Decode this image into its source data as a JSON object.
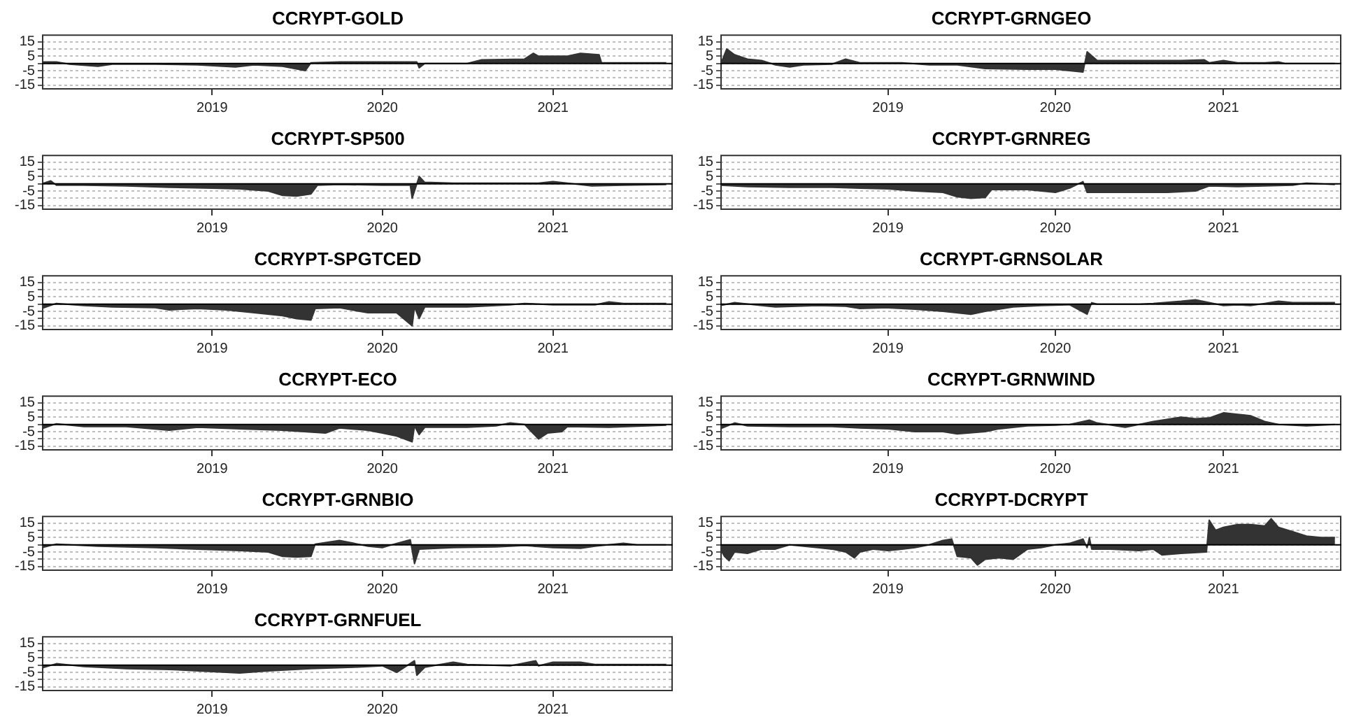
{
  "chart_data": [
    {
      "type": "area",
      "title": "CCRYPT-GOLD",
      "color": "#333333",
      "xlim": [
        "2018-01",
        "2021-09-15"
      ],
      "ylim": [
        -18,
        20
      ],
      "xticks": [
        {
          "value": "2019-01-01",
          "label": "2019"
        },
        {
          "value": "2020-01-01",
          "label": "2020"
        },
        {
          "value": "2021-01-01",
          "label": "2021"
        }
      ],
      "yticks": [
        15,
        {
          "value": 10,
          "label": null
        },
        5,
        {
          "value": 0,
          "label": null
        },
        -5,
        {
          "value": -10,
          "label": null
        },
        -15
      ],
      "grid": "y",
      "ref_lines": [
        {
          "axis": "y",
          "value": 0
        }
      ],
      "x": [
        "2018-01",
        "2018-02",
        "2018-03",
        "2018-05",
        "2018-06",
        "2018-09",
        "2018-12",
        "2019-02-20",
        "2019-04",
        "2019-06",
        "2019-07-20",
        "2019-08",
        "2019-10",
        "2020-01",
        "2020-03-15",
        "2020-03-20",
        "2020-04",
        "2020-07",
        "2020-08",
        "2020-11",
        "2020-11-20",
        "2020-12",
        "2021-02",
        "2021-03",
        "2021-04-10",
        "2021-04-15",
        "2021-06",
        "2021-09"
      ],
      "values": [
        1,
        1,
        -0.5,
        -2,
        -0.5,
        -0.5,
        -1,
        -2.5,
        -1,
        -2,
        -5,
        0.5,
        1,
        1,
        1,
        -3,
        0,
        0,
        2.5,
        3,
        7,
        5,
        5,
        7,
        6,
        0.5,
        0.5,
        0.5
      ]
    },
    {
      "type": "area",
      "title": "CCRYPT-GRNGEO",
      "color": "#333333",
      "xlim": [
        "2018-01",
        "2021-09-15"
      ],
      "ylim": [
        -18,
        20
      ],
      "xticks": [
        {
          "value": "2019-01-01",
          "label": "2019"
        },
        {
          "value": "2020-01-01",
          "label": "2020"
        },
        {
          "value": "2021-01-01",
          "label": "2021"
        }
      ],
      "yticks": [
        15,
        {
          "value": 10,
          "label": null
        },
        5,
        {
          "value": 0,
          "label": null
        },
        -5,
        {
          "value": -10,
          "label": null
        },
        -15
      ],
      "grid": "y",
      "ref_lines": [
        {
          "axis": "y",
          "value": 0
        }
      ],
      "x": [
        "2018-01",
        "2018-01-15",
        "2018-02",
        "2018-03",
        "2018-04",
        "2018-05",
        "2018-06",
        "2018-07",
        "2018-09",
        "2018-10",
        "2018-11",
        "2019-02",
        "2019-04",
        "2019-06",
        "2019-08",
        "2019-11",
        "2020-01",
        "2020-03-01",
        "2020-03-10",
        "2020-04",
        "2020-07",
        "2020-10",
        "2020-11-20",
        "2020-12",
        "2021-01",
        "2021-02",
        "2021-04",
        "2021-05",
        "2021-05-15",
        "2021-09"
      ],
      "values": [
        -1,
        10,
        6,
        3,
        2,
        -1,
        -2.5,
        -1,
        -0.5,
        3,
        0.5,
        0.5,
        -1,
        -1,
        -3.5,
        -4,
        -4,
        -6,
        8,
        2,
        2,
        2,
        2.5,
        0.5,
        2,
        0.5,
        0.5,
        1,
        0,
        0
      ]
    },
    {
      "type": "area",
      "title": "CCRYPT-SP500",
      "color": "#333333",
      "xlim": [
        "2018-01",
        "2021-09-15"
      ],
      "ylim": [
        -18,
        20
      ],
      "xticks": [
        {
          "value": "2019-01-01",
          "label": "2019"
        },
        {
          "value": "2020-01-01",
          "label": "2020"
        },
        {
          "value": "2021-01-01",
          "label": "2021"
        }
      ],
      "yticks": [
        15,
        {
          "value": 10,
          "label": null
        },
        5,
        {
          "value": 0,
          "label": null
        },
        -5,
        {
          "value": -10,
          "label": null
        },
        -15
      ],
      "grid": "y",
      "ref_lines": [
        {
          "axis": "y",
          "value": 0
        }
      ],
      "x": [
        "2018-01",
        "2018-01-20",
        "2018-02",
        "2018-04",
        "2018-07",
        "2018-10",
        "2019-01",
        "2019-03",
        "2019-05",
        "2019-06",
        "2019-07",
        "2019-08",
        "2019-08-15",
        "2019-10",
        "2020-01",
        "2020-03-01",
        "2020-03-05",
        "2020-03-20",
        "2020-04",
        "2020-06",
        "2020-12",
        "2021-01",
        "2021-02",
        "2021-03-25",
        "2021-06",
        "2021-09"
      ],
      "values": [
        0,
        2,
        -1,
        -1,
        -1.5,
        -2.5,
        -3,
        -3.5,
        -5,
        -8,
        -8.5,
        -7,
        -1,
        -0.5,
        -1,
        -1,
        -10,
        5,
        1,
        0.5,
        0.5,
        1.5,
        0.5,
        -1.5,
        -1,
        -0.5
      ]
    },
    {
      "type": "area",
      "title": "CCRYPT-GRNREG",
      "color": "#333333",
      "xlim": [
        "2018-01",
        "2021-09-15"
      ],
      "ylim": [
        -18,
        20
      ],
      "xticks": [
        {
          "value": "2019-01-01",
          "label": "2019"
        },
        {
          "value": "2020-01-01",
          "label": "2020"
        },
        {
          "value": "2021-01-01",
          "label": "2021"
        }
      ],
      "yticks": [
        15,
        {
          "value": 10,
          "label": null
        },
        5,
        {
          "value": 0,
          "label": null
        },
        -5,
        {
          "value": -10,
          "label": null
        },
        -15
      ],
      "grid": "y",
      "ref_lines": [
        {
          "axis": "y",
          "value": 0
        }
      ],
      "x": [
        "2018-01",
        "2018-03",
        "2018-06",
        "2018-09",
        "2018-11",
        "2019-01",
        "2019-03",
        "2019-05",
        "2019-06",
        "2019-07",
        "2019-08",
        "2019-08-15",
        "2019-11",
        "2020-01",
        "2020-02",
        "2020-03-01",
        "2020-03-10",
        "2020-06",
        "2020-09",
        "2020-11",
        "2020-12",
        "2021-02",
        "2021-04",
        "2021-06",
        "2021-07",
        "2021-09"
      ],
      "values": [
        -1,
        -2,
        -2.5,
        -2.5,
        -3,
        -3.5,
        -5,
        -6,
        -9,
        -10,
        -9.5,
        -4,
        -4,
        -6,
        -3,
        1.5,
        -6,
        -6,
        -6,
        -5,
        -1.5,
        -2,
        -1.5,
        -1,
        0.5,
        -0.5
      ]
    },
    {
      "type": "area",
      "title": "CCRYPT-SPGTCED",
      "color": "#333333",
      "xlim": [
        "2018-01",
        "2021-09-15"
      ],
      "ylim": [
        -18,
        20
      ],
      "xticks": [
        {
          "value": "2019-01-01",
          "label": "2019"
        },
        {
          "value": "2020-01-01",
          "label": "2020"
        },
        {
          "value": "2021-01-01",
          "label": "2021"
        }
      ],
      "yticks": [
        15,
        {
          "value": 10,
          "label": null
        },
        5,
        {
          "value": 0,
          "label": null
        },
        -5,
        {
          "value": -10,
          "label": null
        },
        -15
      ],
      "grid": "y",
      "ref_lines": [
        {
          "axis": "y",
          "value": 0
        }
      ],
      "x": [
        "2018-01",
        "2018-02",
        "2018-04",
        "2018-06",
        "2018-09",
        "2018-10",
        "2018-12",
        "2019-02",
        "2019-04",
        "2019-06",
        "2019-07",
        "2019-08",
        "2019-08-10",
        "2019-10",
        "2019-12",
        "2020-02",
        "2020-03-05",
        "2020-03-10",
        "2020-03-20",
        "2020-04",
        "2020-07",
        "2020-10",
        "2020-11",
        "2021-01",
        "2021-04",
        "2021-05",
        "2021-06",
        "2021-09"
      ],
      "values": [
        -3,
        0.5,
        -1,
        -2,
        -2.5,
        -4,
        -3,
        -4,
        -6,
        -8,
        -10,
        -11,
        -3,
        -2.5,
        -6,
        -6,
        -15,
        -2,
        -10,
        -2,
        -2,
        -0.5,
        0.5,
        -0.5,
        -0.5,
        1.5,
        0.5,
        0.5
      ]
    },
    {
      "type": "area",
      "title": "CCRYPT-GRNSOLAR",
      "color": "#333333",
      "xlim": [
        "2018-01",
        "2021-09-15"
      ],
      "ylim": [
        -18,
        20
      ],
      "xticks": [
        {
          "value": "2019-01-01",
          "label": "2019"
        },
        {
          "value": "2020-01-01",
          "label": "2020"
        },
        {
          "value": "2021-01-01",
          "label": "2021"
        }
      ],
      "yticks": [
        15,
        {
          "value": 10,
          "label": null
        },
        5,
        {
          "value": 0,
          "label": null
        },
        -5,
        {
          "value": -10,
          "label": null
        },
        -15
      ],
      "grid": "y",
      "ref_lines": [
        {
          "axis": "y",
          "value": 0
        }
      ],
      "x": [
        "2018-01",
        "2018-02",
        "2018-04",
        "2018-05",
        "2018-08",
        "2018-10",
        "2018-11",
        "2019-01",
        "2019-03",
        "2019-05",
        "2019-07",
        "2019-08",
        "2019-10",
        "2019-12",
        "2020-02",
        "2020-03-10",
        "2020-03-20",
        "2020-04",
        "2020-07",
        "2020-08",
        "2020-10",
        "2020-11",
        "2020-12",
        "2021-01",
        "2021-02",
        "2021-03",
        "2021-04",
        "2021-05",
        "2021-06",
        "2021-09"
      ],
      "values": [
        -1,
        1,
        -1,
        -2,
        -1,
        -1.5,
        -3,
        -2.5,
        -3.5,
        -5,
        -7,
        -5,
        -2,
        -1,
        -0.5,
        -7,
        1,
        0,
        0,
        0.5,
        2,
        3,
        1,
        -1,
        -0.5,
        -1,
        0.5,
        2,
        1,
        1
      ]
    },
    {
      "type": "area",
      "title": "CCRYPT-ECO",
      "color": "#333333",
      "xlim": [
        "2018-01",
        "2021-09-15"
      ],
      "ylim": [
        -18,
        20
      ],
      "xticks": [
        {
          "value": "2019-01-01",
          "label": "2019"
        },
        {
          "value": "2020-01-01",
          "label": "2020"
        },
        {
          "value": "2021-01-01",
          "label": "2021"
        }
      ],
      "yticks": [
        15,
        {
          "value": 10,
          "label": null
        },
        5,
        {
          "value": 0,
          "label": null
        },
        -5,
        {
          "value": -10,
          "label": null
        },
        -15
      ],
      "grid": "y",
      "ref_lines": [
        {
          "axis": "y",
          "value": 0
        }
      ],
      "x": [
        "2018-01",
        "2018-02",
        "2018-04",
        "2018-07",
        "2018-10",
        "2018-12",
        "2019-03",
        "2019-06",
        "2019-09",
        "2019-10",
        "2019-12",
        "2020-01",
        "2020-02",
        "2020-03-05",
        "2020-03-10",
        "2020-03-20",
        "2020-04",
        "2020-07",
        "2020-09",
        "2020-10",
        "2020-11",
        "2020-12",
        "2020-12-20",
        "2021-01-20",
        "2021-02",
        "2021-05",
        "2021-09"
      ],
      "values": [
        -3,
        0.5,
        -1.5,
        -1.5,
        -4,
        -2,
        -3,
        -4,
        -6,
        -2.5,
        -4,
        -6,
        -8,
        -12,
        -1,
        -7,
        -2,
        -2,
        -1,
        1,
        0,
        -10,
        -6,
        -5,
        -1.5,
        -2,
        -0.5
      ]
    },
    {
      "type": "area",
      "title": "CCRYPT-GRNWIND",
      "color": "#333333",
      "xlim": [
        "2018-01",
        "2021-09-15"
      ],
      "ylim": [
        -18,
        20
      ],
      "xticks": [
        {
          "value": "2019-01-01",
          "label": "2019"
        },
        {
          "value": "2020-01-01",
          "label": "2020"
        },
        {
          "value": "2021-01-01",
          "label": "2021"
        }
      ],
      "yticks": [
        15,
        {
          "value": 10,
          "label": null
        },
        5,
        {
          "value": 0,
          "label": null
        },
        -5,
        {
          "value": -10,
          "label": null
        },
        -15
      ],
      "grid": "y",
      "ref_lines": [
        {
          "axis": "y",
          "value": 0
        }
      ],
      "x": [
        "2018-01",
        "2018-02",
        "2018-03",
        "2018-06",
        "2018-09",
        "2018-11",
        "2019-01",
        "2019-03",
        "2019-05",
        "2019-06",
        "2019-08",
        "2019-09",
        "2019-11",
        "2020-01",
        "2020-02",
        "2020-03-15",
        "2020-04",
        "2020-06",
        "2020-07",
        "2020-08",
        "2020-10",
        "2020-11",
        "2020-12",
        "2021-01",
        "2021-02",
        "2021-03",
        "2021-04",
        "2021-05",
        "2021-06",
        "2021-07",
        "2021-09"
      ],
      "values": [
        -3,
        1,
        -1,
        -1.5,
        -1.5,
        -2.5,
        -3,
        -5,
        -5,
        -6.5,
        -5,
        -3,
        -1,
        -0.5,
        0,
        3,
        1,
        -2,
        0,
        2,
        5,
        4,
        4.5,
        8,
        7,
        6,
        2,
        0,
        -0.5,
        -1,
        0
      ]
    },
    {
      "type": "area",
      "title": "CCRYPT-GRNBIO",
      "color": "#333333",
      "xlim": [
        "2018-01",
        "2021-09-15"
      ],
      "ylim": [
        -18,
        20
      ],
      "xticks": [
        {
          "value": "2019-01-01",
          "label": "2019"
        },
        {
          "value": "2020-01-01",
          "label": "2020"
        },
        {
          "value": "2021-01-01",
          "label": "2021"
        }
      ],
      "yticks": [
        15,
        {
          "value": 10,
          "label": null
        },
        5,
        {
          "value": 0,
          "label": null
        },
        -5,
        {
          "value": -10,
          "label": null
        },
        -15
      ],
      "grid": "y",
      "ref_lines": [
        {
          "axis": "y",
          "value": 0
        }
      ],
      "x": [
        "2018-01",
        "2018-02",
        "2018-05",
        "2018-09",
        "2018-12",
        "2019-03",
        "2019-05",
        "2019-06",
        "2019-07",
        "2019-08",
        "2019-08-10",
        "2019-10",
        "2019-11",
        "2019-12",
        "2020-01",
        "2020-02",
        "2020-03-01",
        "2020-03-10",
        "2020-03-20",
        "2020-06",
        "2020-09",
        "2020-11",
        "2021-01",
        "2021-03",
        "2021-04",
        "2021-06",
        "2021-07",
        "2021-09"
      ],
      "values": [
        -2,
        0.5,
        -1,
        -2,
        -3,
        -4,
        -5,
        -8,
        -8.5,
        -8,
        0.5,
        3,
        1,
        -1,
        -2,
        1,
        3.5,
        -13,
        -3,
        -2,
        -1.5,
        -0.5,
        -2,
        -2.5,
        -1,
        1,
        0,
        0
      ]
    },
    {
      "type": "area",
      "title": "CCRYPT-DCRYPT",
      "color": "#333333",
      "xlim": [
        "2018-01",
        "2021-09-15"
      ],
      "ylim": [
        -18,
        20
      ],
      "xticks": [
        {
          "value": "2019-01-01",
          "label": "2019"
        },
        {
          "value": "2020-01-01",
          "label": "2020"
        },
        {
          "value": "2021-01-01",
          "label": "2021"
        }
      ],
      "yticks": [
        15,
        {
          "value": 10,
          "label": null
        },
        5,
        {
          "value": 0,
          "label": null
        },
        -5,
        {
          "value": -10,
          "label": null
        },
        -15
      ],
      "grid": "y",
      "ref_lines": [
        {
          "axis": "y",
          "value": 0
        }
      ],
      "x": [
        "2018-01",
        "2018-01-10",
        "2018-01-20",
        "2018-02",
        "2018-03",
        "2018-04",
        "2018-05",
        "2018-06",
        "2018-07",
        "2018-08",
        "2018-09",
        "2018-10",
        "2018-10-20",
        "2018-11",
        "2018-12",
        "2019-01",
        "2019-02",
        "2019-03",
        "2019-04",
        "2019-05",
        "2019-05-20",
        "2019-06",
        "2019-07",
        "2019-07-15",
        "2019-08",
        "2019-09",
        "2019-10",
        "2019-11",
        "2019-12",
        "2020-01",
        "2020-02",
        "2020-03-01",
        "2020-03-10",
        "2020-03-15",
        "2020-03-20",
        "2020-05",
        "2020-07",
        "2020-08",
        "2020-08-20",
        "2020-10",
        "2020-11-25",
        "2020-12-01",
        "2020-12-15",
        "2021-01",
        "2021-02",
        "2021-03",
        "2021-04",
        "2021-04-15",
        "2021-05",
        "2021-06",
        "2021-07",
        "2021-08",
        "2021-09"
      ],
      "values": [
        -3,
        -8,
        -11,
        -5,
        -6,
        -3,
        -3,
        0,
        -1,
        -2,
        -3,
        -5,
        -9,
        -5,
        -3,
        -4,
        -3,
        -2,
        0,
        3,
        4,
        -8,
        -9,
        -14,
        -10,
        -9,
        -10,
        -3,
        -2,
        0,
        1,
        4,
        -2,
        5,
        -3,
        -3,
        -4,
        -3,
        -7,
        -6,
        -5,
        17,
        10,
        12,
        14,
        14,
        13,
        18,
        12,
        9,
        6,
        5,
        5
      ]
    },
    {
      "type": "area",
      "title": "CCRYPT-GRNFUEL",
      "color": "#333333",
      "xlim": [
        "2018-01",
        "2021-09-15"
      ],
      "ylim": [
        -18,
        20
      ],
      "xticks": [
        {
          "value": "2019-01-01",
          "label": "2019"
        },
        {
          "value": "2020-01-01",
          "label": "2020"
        },
        {
          "value": "2021-01-01",
          "label": "2021"
        }
      ],
      "yticks": [
        15,
        {
          "value": 10,
          "label": null
        },
        5,
        {
          "value": 0,
          "label": null
        },
        -5,
        {
          "value": -10,
          "label": null
        },
        -15
      ],
      "grid": "y",
      "ref_lines": [
        {
          "axis": "y",
          "value": 0
        }
      ],
      "x": [
        "2018-01",
        "2018-02",
        "2018-04",
        "2018-07",
        "2018-10",
        "2019-01",
        "2019-03",
        "2019-05",
        "2019-08",
        "2019-11",
        "2020-01",
        "2020-02",
        "2020-03-10",
        "2020-03-15",
        "2020-04",
        "2020-06",
        "2020-07",
        "2020-10",
        "2020-11-25",
        "2020-12",
        "2021-01",
        "2021-03",
        "2021-04",
        "2021-09"
      ],
      "values": [
        -2,
        1,
        -1,
        -2.5,
        -3,
        -4.5,
        -5.5,
        -4,
        -2.5,
        -1.5,
        -0.5,
        -5,
        3,
        -7,
        -1.5,
        2,
        0.5,
        -0.5,
        3,
        -0.5,
        2,
        2,
        0.5,
        0.5
      ]
    }
  ]
}
